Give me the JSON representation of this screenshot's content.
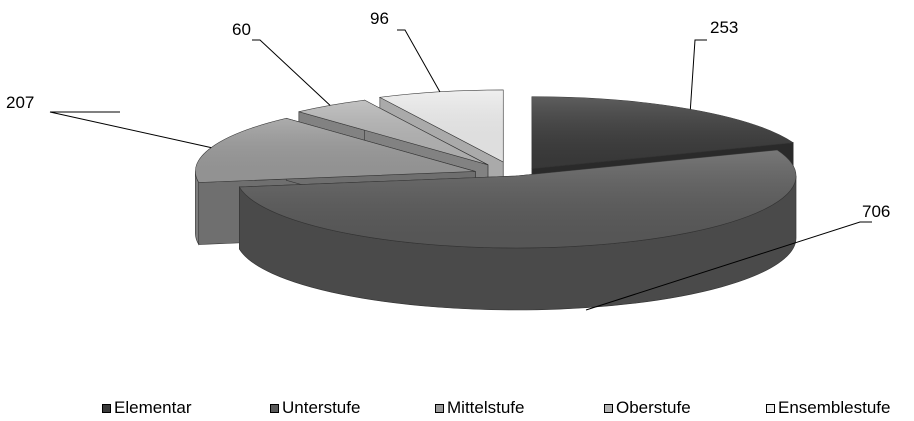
{
  "chart_data": {
    "type": "pie",
    "style": "3d-exploded",
    "categories": [
      "Elementar",
      "Unterstufe",
      "Mittelstufe",
      "Oberstufe",
      "Ensemblestufe"
    ],
    "values": [
      253,
      706,
      207,
      60,
      96
    ],
    "data_labels": [
      "253",
      "706",
      "207",
      "60",
      "96"
    ],
    "colors": [
      "#3a3a3a",
      "#5a5a5a",
      "#9a9a9a",
      "#b5b5b5",
      "#ececec"
    ],
    "title": "",
    "legend_position": "bottom"
  }
}
